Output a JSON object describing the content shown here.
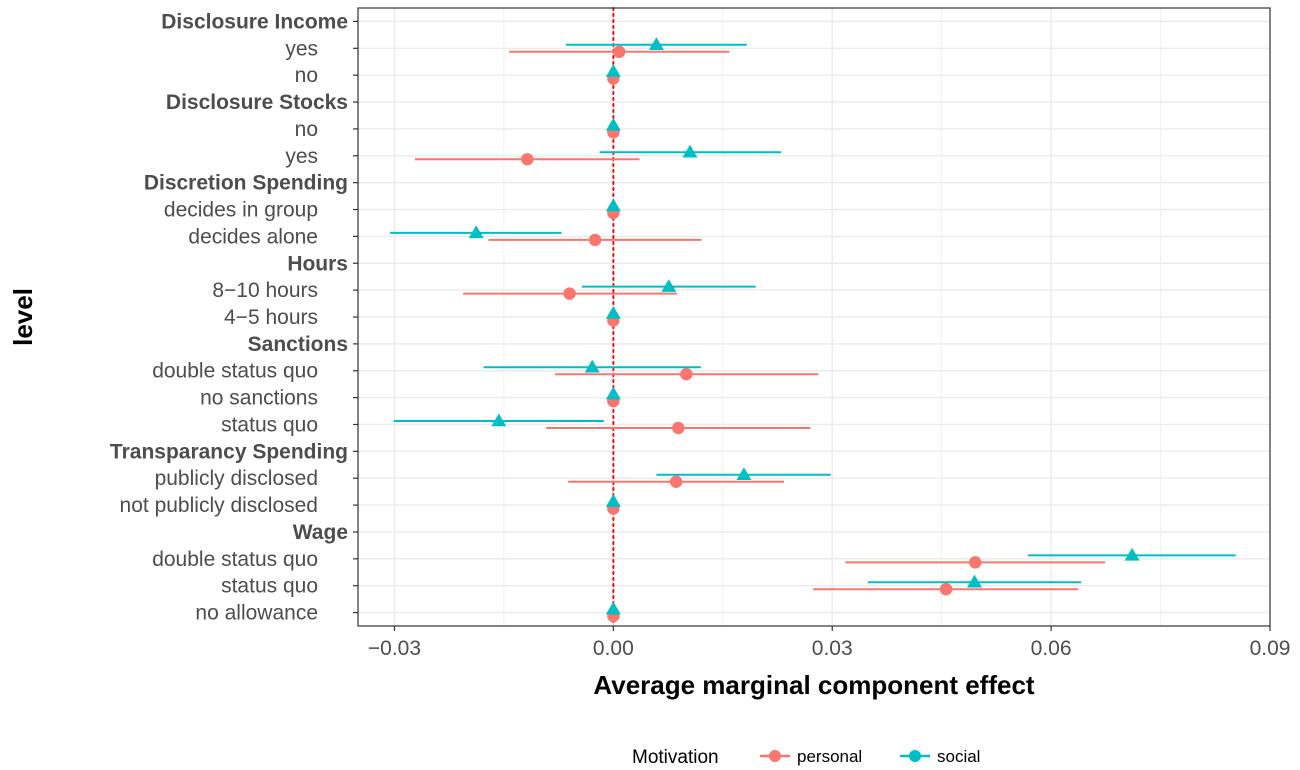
{
  "chart_data": {
    "type": "dot-range",
    "xlabel": "Average marginal component effect",
    "ylabel": "level",
    "xlim": [
      -0.035,
      0.09
    ],
    "x_ticks": [
      -0.03,
      0.0,
      0.03,
      0.06,
      0.09
    ],
    "x_tick_labels": [
      "−0.03",
      "0.00",
      "0.03",
      "0.06",
      "0.09"
    ],
    "grid": true,
    "reference_line": {
      "x": 0,
      "color": "#ff0000",
      "style": "dotted"
    },
    "legend": {
      "title": "Motivation",
      "position": "bottom"
    },
    "series": [
      {
        "name": "personal",
        "color": "#f8766d",
        "marker": "circle"
      },
      {
        "name": "social",
        "color": "#00bfc4",
        "marker": "triangle"
      }
    ],
    "rows": [
      {
        "label": "Disclosure Income",
        "header": true
      },
      {
        "label": "yes",
        "personal": [
          0.0008,
          -0.0143,
          0.0159
        ],
        "social": [
          0.0059,
          -0.0065,
          0.0183
        ]
      },
      {
        "label": "no",
        "personal": [
          0,
          0,
          0
        ],
        "social": [
          0,
          0,
          0
        ]
      },
      {
        "label": "Disclosure Stocks",
        "header": true
      },
      {
        "label": "no",
        "personal": [
          0,
          0,
          0
        ],
        "social": [
          0,
          0,
          0
        ]
      },
      {
        "label": "yes",
        "personal": [
          -0.0118,
          -0.0272,
          0.0036
        ],
        "social": [
          0.0105,
          -0.0019,
          0.023
        ]
      },
      {
        "label": "Discretion Spending",
        "header": true
      },
      {
        "label": "decides in group",
        "personal": [
          0,
          0,
          0
        ],
        "social": [
          0,
          0,
          0
        ]
      },
      {
        "label": "decides alone",
        "personal": [
          -0.0025,
          -0.0171,
          0.0121
        ],
        "social": [
          -0.0188,
          -0.0306,
          -0.0071
        ]
      },
      {
        "label": "Hours",
        "header": true
      },
      {
        "label": "8−10 hours",
        "personal": [
          -0.006,
          -0.0206,
          0.0087
        ],
        "social": [
          0.0076,
          -0.0043,
          0.0195
        ]
      },
      {
        "label": "4−5 hours",
        "personal": [
          0,
          0,
          0
        ],
        "social": [
          0,
          0,
          0
        ]
      },
      {
        "label": "Sanctions",
        "header": true
      },
      {
        "label": "double status quo",
        "personal": [
          0.01,
          -0.008,
          0.0281
        ],
        "social": [
          -0.0029,
          -0.0178,
          0.012
        ]
      },
      {
        "label": "no sanctions",
        "personal": [
          0,
          0,
          0
        ],
        "social": [
          0,
          0,
          0
        ]
      },
      {
        "label": "status quo",
        "personal": [
          0.0089,
          -0.0092,
          0.027
        ],
        "social": [
          -0.0157,
          -0.0301,
          -0.0013
        ]
      },
      {
        "label": "Transparancy Spending",
        "header": true
      },
      {
        "label": "publicly disclosed",
        "personal": [
          0.0086,
          -0.0062,
          0.0234
        ],
        "social": [
          0.0179,
          0.0059,
          0.0298
        ]
      },
      {
        "label": "not publicly disclosed",
        "personal": [
          0,
          0,
          0
        ],
        "social": [
          0,
          0,
          0
        ]
      },
      {
        "label": "Wage",
        "header": true
      },
      {
        "label": "double status quo",
        "personal": [
          0.0496,
          0.0318,
          0.0674
        ],
        "social": [
          0.0711,
          0.0568,
          0.0853
        ]
      },
      {
        "label": "status quo",
        "personal": [
          0.0456,
          0.0274,
          0.0637
        ],
        "social": [
          0.0495,
          0.0349,
          0.0641
        ]
      },
      {
        "label": "no allowance",
        "personal": [
          0,
          0,
          0
        ],
        "social": [
          0,
          0,
          0
        ]
      }
    ]
  }
}
